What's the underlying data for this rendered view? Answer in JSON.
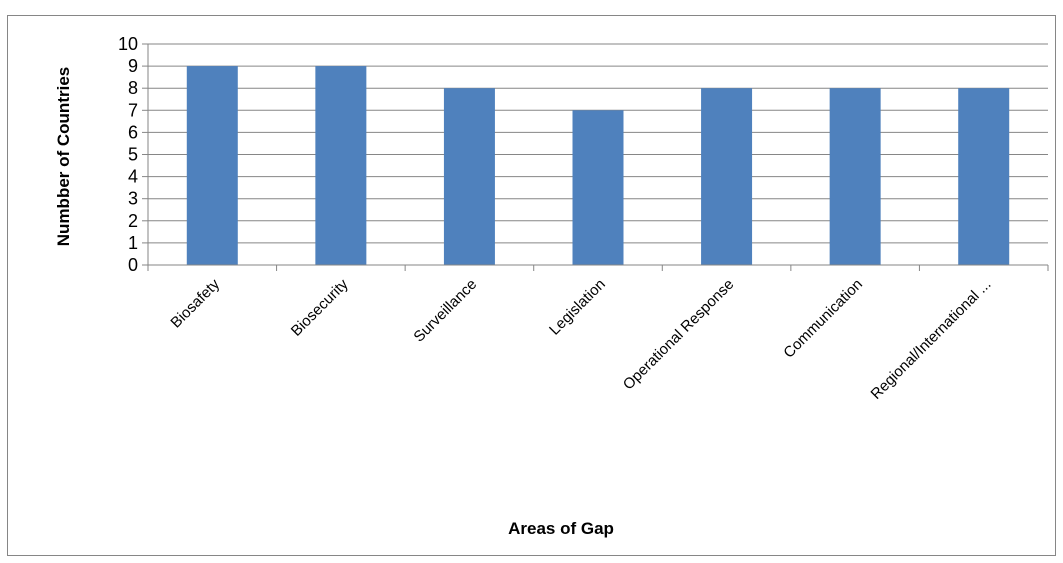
{
  "chart_data": {
    "type": "bar",
    "title": "",
    "xlabel": "Areas of Gap",
    "ylabel": "Numbber of Countries",
    "categories": [
      "Biosafety",
      "Biosecurity",
      "Surveillance",
      "Legislation",
      "Operational Response",
      "Communication",
      "Regional/International ..."
    ],
    "values": [
      9,
      9,
      8,
      7,
      8,
      8,
      8
    ],
    "ylim": [
      0,
      10
    ],
    "yticks": [
      0,
      1,
      2,
      3,
      4,
      5,
      6,
      7,
      8,
      9,
      10
    ],
    "grid": true,
    "legend": "none",
    "bar_color": "#4f81bd",
    "grid_color": "#868686"
  }
}
